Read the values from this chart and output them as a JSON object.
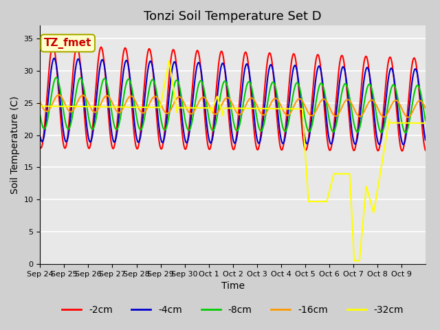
{
  "title": "Tonzi Soil Temperature Set D",
  "xlabel": "Time",
  "ylabel": "Soil Temperature (C)",
  "ylim": [
    0,
    37
  ],
  "yticks": [
    0,
    5,
    10,
    15,
    20,
    25,
    30,
    35
  ],
  "x_tick_labels": [
    "Sep 24",
    "Sep 25",
    "Sep 26",
    "Sep 27",
    "Sep 28",
    "Sep 29",
    "Sep 30",
    "Oct 1",
    "Oct 2",
    "Oct 3",
    "Oct 4",
    "Oct 5",
    "Oct 6",
    "Oct 7",
    "Oct 8",
    "Oct 9"
  ],
  "legend_labels": [
    "-2cm",
    "-4cm",
    "-8cm",
    "-16cm",
    "-32cm"
  ],
  "line_colors": [
    "#ff0000",
    "#0000cc",
    "#00cc00",
    "#ff9900",
    "#ffff00"
  ],
  "annotation_text": "TZ_fmet",
  "annotation_box_facecolor": "#ffffcc",
  "annotation_text_color": "#cc0000",
  "annotation_edge_color": "#aaaa00",
  "fig_facecolor": "#d0d0d0",
  "ax_facecolor": "#e8e8e8",
  "grid_color": "#ffffff",
  "title_fontsize": 13,
  "tick_fontsize": 8,
  "label_fontsize": 10,
  "legend_fontsize": 10,
  "n_days": 16
}
